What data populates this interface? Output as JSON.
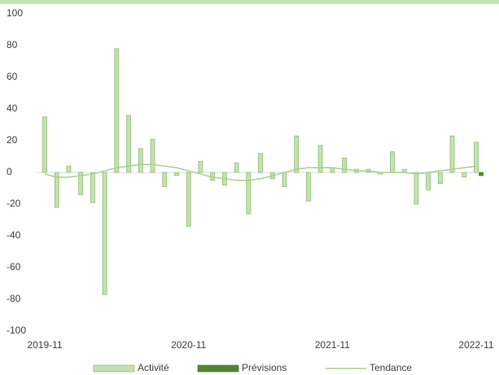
{
  "chart_data": {
    "type": "bar",
    "categories": [
      "2019-11",
      null,
      null,
      null,
      null,
      null,
      null,
      null,
      null,
      null,
      null,
      null,
      "2020-11",
      null,
      null,
      null,
      null,
      null,
      null,
      null,
      null,
      null,
      null,
      null,
      "2021-11",
      null,
      null,
      null,
      null,
      null,
      null,
      null,
      null,
      null,
      null,
      null,
      "2022-11"
    ],
    "series": [
      {
        "name": "Activité",
        "type": "bar",
        "color": "#c5e0b4",
        "values": [
          35,
          -22,
          4,
          -14,
          -19,
          -77,
          78,
          36,
          15,
          21,
          -9,
          -2,
          -34,
          7,
          -5,
          -8,
          6,
          -26,
          12,
          -4,
          -9,
          23,
          -18,
          17,
          3,
          9,
          2,
          2,
          -1,
          13,
          2,
          -20,
          -11,
          -7,
          23,
          -3,
          19
        ]
      },
      {
        "name": "Prévisions",
        "type": "bar",
        "color": "#548235",
        "values": [
          null,
          null,
          null,
          null,
          null,
          null,
          null,
          null,
          null,
          null,
          null,
          null,
          null,
          null,
          null,
          null,
          null,
          null,
          null,
          null,
          null,
          null,
          null,
          null,
          null,
          null,
          null,
          null,
          null,
          null,
          null,
          null,
          null,
          null,
          null,
          null,
          -2
        ]
      },
      {
        "name": "Tendance",
        "type": "line",
        "color": "#a9d18e",
        "values": [
          -1,
          -3,
          -3,
          -2,
          -1,
          1,
          3,
          4,
          5,
          5,
          4,
          3,
          1,
          -1,
          -3,
          -4,
          -5,
          -5,
          -4,
          -2,
          0,
          2,
          3,
          3,
          3,
          2,
          1,
          1,
          0,
          0,
          0,
          -1,
          0,
          1,
          2,
          3,
          4
        ]
      }
    ],
    "ylim": [
      -100,
      100
    ],
    "yticks": [
      -100,
      -80,
      -60,
      -40,
      -20,
      0,
      20,
      40,
      60,
      80,
      100
    ],
    "grid": false,
    "legend": "bottom"
  }
}
